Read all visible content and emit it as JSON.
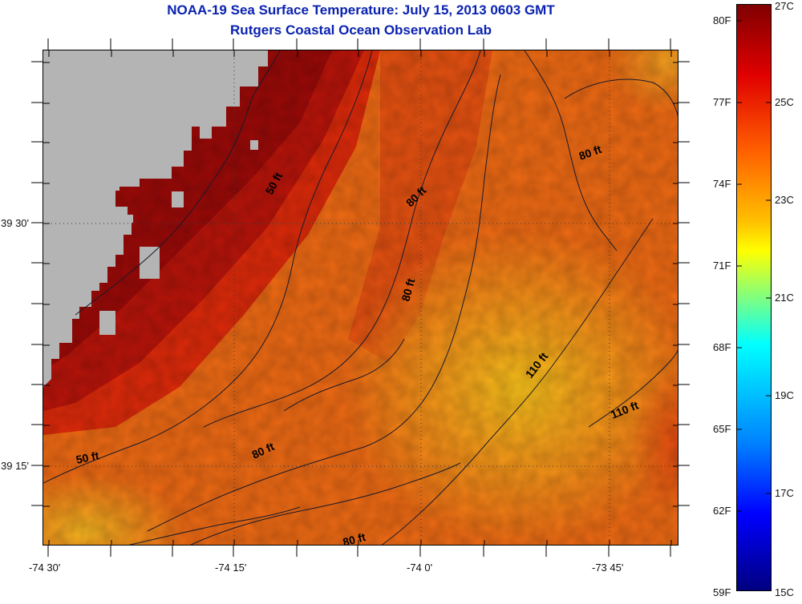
{
  "title": {
    "line1": "NOAA-19 Sea Surface Temperature:  July 15, 2013 0603 GMT",
    "line2": "Rutgers Coastal Ocean Observation Lab"
  },
  "axes": {
    "x_ticks": [
      "-74 30'",
      "-74 15'",
      "-74 0'",
      "-73 45'"
    ],
    "y_ticks": [
      "39 30'",
      "39 15'"
    ]
  },
  "colorbar": {
    "fahrenheit_labels": [
      "80F",
      "77F",
      "74F",
      "71F",
      "68F",
      "65F",
      "62F",
      "59F"
    ],
    "celsius_labels": [
      "27C",
      "25C",
      "23C",
      "21C",
      "19C",
      "17C",
      "15C"
    ],
    "range_c": [
      15,
      27
    ]
  },
  "contour_labels": [
    "50 ft",
    "50 ft",
    "80 ft",
    "80 ft",
    "80 ft",
    "80 ft",
    "80 ft",
    "110 ft",
    "110 ft"
  ],
  "colors": {
    "land": "#b4b4b4",
    "title": "#0a22b0",
    "contour": "#1a1a2a"
  }
}
